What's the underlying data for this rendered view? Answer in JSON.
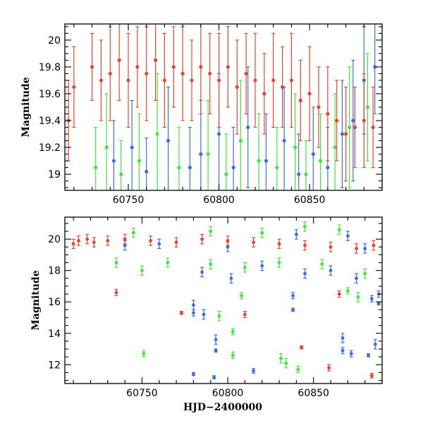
{
  "chart_data": [
    {
      "type": "scatter",
      "panel": "top",
      "title": "",
      "xlabel": "",
      "ylabel": "Magnitude",
      "xlim": [
        60715,
        60890
      ],
      "ylim": [
        20.12,
        18.88
      ],
      "y_inverted": true,
      "x_ticks": [
        60750,
        60800,
        60850
      ],
      "y_ticks": [
        19,
        19.2,
        19.4,
        19.6,
        19.8,
        20
      ],
      "y_tick_labels": [
        "19",
        "19.2",
        "19.4",
        "19.6",
        "19.8",
        "20"
      ],
      "grid": false,
      "series": [
        {
          "color": "#3a6ee8",
          "values": [
            {
              "x": 60742,
              "y": 19.1,
              "err": 0.3
            },
            {
              "x": 60752,
              "y": 19.2,
              "err": 0.35
            },
            {
              "x": 60760,
              "y": 19.02,
              "err": 0.25
            },
            {
              "x": 60772,
              "y": 19.25,
              "err": 0.4
            },
            {
              "x": 60784,
              "y": 19.05,
              "err": 0.3
            },
            {
              "x": 60790,
              "y": 19.15,
              "err": 0.4
            },
            {
              "x": 60800,
              "y": 19.3,
              "err": 0.45
            },
            {
              "x": 60808,
              "y": 19.05,
              "err": 0.3
            },
            {
              "x": 60816,
              "y": 19.35,
              "err": 0.45
            },
            {
              "x": 60826,
              "y": 19.1,
              "err": 0.35
            },
            {
              "x": 60836,
              "y": 19.25,
              "err": 0.4
            },
            {
              "x": 60844,
              "y": 19.0,
              "err": 0.3
            },
            {
              "x": 60852,
              "y": 19.15,
              "err": 0.35
            },
            {
              "x": 60860,
              "y": 19.05,
              "err": 0.3
            },
            {
              "x": 60868,
              "y": 19.3,
              "err": 0.4
            },
            {
              "x": 60874,
              "y": 19.4,
              "err": 0.45
            },
            {
              "x": 60880,
              "y": 19.7,
              "err": 0.4
            },
            {
              "x": 60886,
              "y": 19.8,
              "err": 0.35
            }
          ]
        },
        {
          "color": "#3ee83a",
          "values": [
            {
              "x": 60732,
              "y": 19.05,
              "err": 0.3
            },
            {
              "x": 60738,
              "y": 19.2,
              "err": 0.4
            },
            {
              "x": 60746,
              "y": 19.0,
              "err": 0.25
            },
            {
              "x": 60756,
              "y": 19.1,
              "err": 0.35
            },
            {
              "x": 60766,
              "y": 19.3,
              "err": 0.45
            },
            {
              "x": 60778,
              "y": 19.05,
              "err": 0.3
            },
            {
              "x": 60794,
              "y": 19.15,
              "err": 0.4
            },
            {
              "x": 60804,
              "y": 19.0,
              "err": 0.3
            },
            {
              "x": 60812,
              "y": 19.25,
              "err": 0.45
            },
            {
              "x": 60822,
              "y": 19.1,
              "err": 0.35
            },
            {
              "x": 60832,
              "y": 19.05,
              "err": 0.3
            },
            {
              "x": 60842,
              "y": 19.2,
              "err": 0.4
            },
            {
              "x": 60848,
              "y": 19.0,
              "err": 0.25
            },
            {
              "x": 60856,
              "y": 19.1,
              "err": 0.35
            },
            {
              "x": 60864,
              "y": 19.2,
              "err": 0.4
            },
            {
              "x": 60872,
              "y": 19.35,
              "err": 0.45
            },
            {
              "x": 60882,
              "y": 19.5,
              "err": 0.4
            }
          ]
        },
        {
          "color": "#e8452c",
          "values": [
            {
              "x": 60717,
              "y": 19.4,
              "err": 0.3
            },
            {
              "x": 60720,
              "y": 19.65,
              "err": 0.3
            },
            {
              "x": 60730,
              "y": 19.8,
              "err": 0.25
            },
            {
              "x": 60735,
              "y": 19.7,
              "err": 0.3
            },
            {
              "x": 60740,
              "y": 19.75,
              "err": 0.35
            },
            {
              "x": 60745,
              "y": 19.85,
              "err": 0.3
            },
            {
              "x": 60750,
              "y": 19.7,
              "err": 0.35
            },
            {
              "x": 60755,
              "y": 19.8,
              "err": 0.3
            },
            {
              "x": 60760,
              "y": 19.75,
              "err": 0.35
            },
            {
              "x": 60765,
              "y": 19.85,
              "err": 0.3
            },
            {
              "x": 60770,
              "y": 19.7,
              "err": 0.35
            },
            {
              "x": 60775,
              "y": 19.8,
              "err": 0.3
            },
            {
              "x": 60780,
              "y": 19.75,
              "err": 0.35
            },
            {
              "x": 60785,
              "y": 19.7,
              "err": 0.3
            },
            {
              "x": 60790,
              "y": 19.8,
              "err": 0.35
            },
            {
              "x": 60795,
              "y": 19.75,
              "err": 0.3
            },
            {
              "x": 60800,
              "y": 19.7,
              "err": 0.35
            },
            {
              "x": 60805,
              "y": 19.8,
              "err": 0.3
            },
            {
              "x": 60810,
              "y": 19.65,
              "err": 0.35
            },
            {
              "x": 60815,
              "y": 19.75,
              "err": 0.3
            },
            {
              "x": 60820,
              "y": 19.7,
              "err": 0.35
            },
            {
              "x": 60825,
              "y": 19.6,
              "err": 0.3
            },
            {
              "x": 60830,
              "y": 19.7,
              "err": 0.35
            },
            {
              "x": 60835,
              "y": 19.65,
              "err": 0.3
            },
            {
              "x": 60840,
              "y": 19.7,
              "err": 0.35
            },
            {
              "x": 60845,
              "y": 19.55,
              "err": 0.3
            },
            {
              "x": 60850,
              "y": 19.6,
              "err": 0.35
            },
            {
              "x": 60855,
              "y": 19.5,
              "err": 0.3
            },
            {
              "x": 60860,
              "y": 19.45,
              "err": 0.35
            },
            {
              "x": 60865,
              "y": 19.4,
              "err": 0.3
            },
            {
              "x": 60870,
              "y": 19.3,
              "err": 0.35
            },
            {
              "x": 60875,
              "y": 19.35,
              "err": 0.3
            },
            {
              "x": 60880,
              "y": 19.4,
              "err": 0.35
            },
            {
              "x": 60885,
              "y": 19.35,
              "err": 0.3
            }
          ]
        }
      ]
    },
    {
      "type": "scatter",
      "panel": "bottom",
      "title": "",
      "xlabel": "HJD−2400000",
      "ylabel": "Magnitude",
      "xlim": [
        60705,
        60890
      ],
      "ylim": [
        21.4,
        10.8
      ],
      "y_inverted": true,
      "x_ticks": [
        60750,
        60800,
        60850
      ],
      "y_ticks": [
        12,
        14,
        16,
        18,
        20
      ],
      "y_tick_labels": [
        "12",
        "14",
        "16",
        "18",
        "20"
      ],
      "grid": false,
      "series": [
        {
          "color": "#3a6ee8",
          "values": [
            {
              "x": 60780,
              "y": 11.4,
              "err": 0.1
            },
            {
              "x": 60792,
              "y": 11.2,
              "err": 0.1
            },
            {
              "x": 60815,
              "y": 11.6,
              "err": 0.15
            },
            {
              "x": 60793,
              "y": 12.9,
              "err": 0.1
            },
            {
              "x": 60793,
              "y": 13.6,
              "err": 0.3
            },
            {
              "x": 60780,
              "y": 15.3,
              "err": 0.2
            },
            {
              "x": 60786,
              "y": 15.2,
              "err": 0.3
            },
            {
              "x": 60780,
              "y": 15.8,
              "err": 0.3
            },
            {
              "x": 60838,
              "y": 15.5,
              "err": 0.1
            },
            {
              "x": 60838,
              "y": 16.4,
              "err": 0.2
            },
            {
              "x": 60867,
              "y": 12.9,
              "err": 0.2
            },
            {
              "x": 60872,
              "y": 12.7,
              "err": 0.2
            },
            {
              "x": 60867,
              "y": 13.7,
              "err": 0.3
            },
            {
              "x": 60882,
              "y": 12.6,
              "err": 0.1
            },
            {
              "x": 60886,
              "y": 13.3,
              "err": 0.3
            },
            {
              "x": 60884,
              "y": 16.2,
              "err": 0.2
            },
            {
              "x": 60888,
              "y": 16.5,
              "err": 0.2
            },
            {
              "x": 60888,
              "y": 15.9,
              "err": 0.1
            },
            {
              "x": 60802,
              "y": 17.5,
              "err": 0.3
            },
            {
              "x": 60785,
              "y": 17.9,
              "err": 0.3
            },
            {
              "x": 60820,
              "y": 18.3,
              "err": 0.3
            },
            {
              "x": 60845,
              "y": 17.8,
              "err": 0.3
            },
            {
              "x": 60860,
              "y": 18.0,
              "err": 0.3
            },
            {
              "x": 60875,
              "y": 17.5,
              "err": 0.3
            },
            {
              "x": 60740,
              "y": 19.6,
              "err": 0.3
            },
            {
              "x": 60760,
              "y": 19.7,
              "err": 0.3
            },
            {
              "x": 60800,
              "y": 19.5,
              "err": 0.3
            },
            {
              "x": 60840,
              "y": 20.3,
              "err": 0.3
            },
            {
              "x": 60870,
              "y": 20.2,
              "err": 0.3
            },
            {
              "x": 60880,
              "y": 19.4,
              "err": 0.3
            }
          ]
        },
        {
          "color": "#3ee83a",
          "values": [
            {
              "x": 60751,
              "y": 12.7,
              "err": 0.2
            },
            {
              "x": 60803,
              "y": 12.6,
              "err": 0.2
            },
            {
              "x": 60831,
              "y": 12.4,
              "err": 0.3
            },
            {
              "x": 60834,
              "y": 12.1,
              "err": 0.3
            },
            {
              "x": 60841,
              "y": 11.7,
              "err": 0.2
            },
            {
              "x": 60803,
              "y": 14.1,
              "err": 0.2
            },
            {
              "x": 60795,
              "y": 15.1,
              "err": 0.3
            },
            {
              "x": 60808,
              "y": 16.4,
              "err": 0.2
            },
            {
              "x": 60876,
              "y": 16.3,
              "err": 0.3
            },
            {
              "x": 60870,
              "y": 16.7,
              "err": 0.2
            },
            {
              "x": 60735,
              "y": 18.5,
              "err": 0.3
            },
            {
              "x": 60750,
              "y": 18.0,
              "err": 0.3
            },
            {
              "x": 60765,
              "y": 18.5,
              "err": 0.3
            },
            {
              "x": 60790,
              "y": 18.4,
              "err": 0.3
            },
            {
              "x": 60810,
              "y": 18.2,
              "err": 0.3
            },
            {
              "x": 60830,
              "y": 18.5,
              "err": 0.3
            },
            {
              "x": 60855,
              "y": 18.4,
              "err": 0.3
            },
            {
              "x": 60880,
              "y": 17.8,
              "err": 0.3
            },
            {
              "x": 60745,
              "y": 20.4,
              "err": 0.3
            },
            {
              "x": 60790,
              "y": 20.5,
              "err": 0.3
            },
            {
              "x": 60820,
              "y": 20.4,
              "err": 0.3
            },
            {
              "x": 60845,
              "y": 20.8,
              "err": 0.3
            },
            {
              "x": 60865,
              "y": 20.6,
              "err": 0.3
            }
          ]
        },
        {
          "color": "#e8452c",
          "values": [
            {
              "x": 60859,
              "y": 11.8,
              "err": 0.2
            },
            {
              "x": 60884,
              "y": 11.3,
              "err": 0.15
            },
            {
              "x": 60843,
              "y": 13.1,
              "err": 0.1
            },
            {
              "x": 60773,
              "y": 15.3,
              "err": 0.1
            },
            {
              "x": 60810,
              "y": 15.2,
              "err": 0.2
            },
            {
              "x": 60735,
              "y": 16.6,
              "err": 0.2
            },
            {
              "x": 60865,
              "y": 16.5,
              "err": 0.2
            },
            {
              "x": 60710,
              "y": 19.7,
              "err": 0.3
            },
            {
              "x": 60713,
              "y": 19.9,
              "err": 0.3
            },
            {
              "x": 60718,
              "y": 20.0,
              "err": 0.3
            },
            {
              "x": 60722,
              "y": 19.8,
              "err": 0.3
            },
            {
              "x": 60730,
              "y": 19.9,
              "err": 0.3
            },
            {
              "x": 60740,
              "y": 20.0,
              "err": 0.3
            },
            {
              "x": 60755,
              "y": 19.9,
              "err": 0.3
            },
            {
              "x": 60770,
              "y": 19.8,
              "err": 0.3
            },
            {
              "x": 60785,
              "y": 20.0,
              "err": 0.3
            },
            {
              "x": 60800,
              "y": 19.9,
              "err": 0.3
            },
            {
              "x": 60815,
              "y": 19.8,
              "err": 0.3
            },
            {
              "x": 60830,
              "y": 19.7,
              "err": 0.3
            },
            {
              "x": 60845,
              "y": 19.6,
              "err": 0.3
            },
            {
              "x": 60860,
              "y": 19.5,
              "err": 0.3
            },
            {
              "x": 60875,
              "y": 19.4,
              "err": 0.3
            },
            {
              "x": 60885,
              "y": 19.6,
              "err": 0.3
            }
          ]
        }
      ]
    }
  ]
}
